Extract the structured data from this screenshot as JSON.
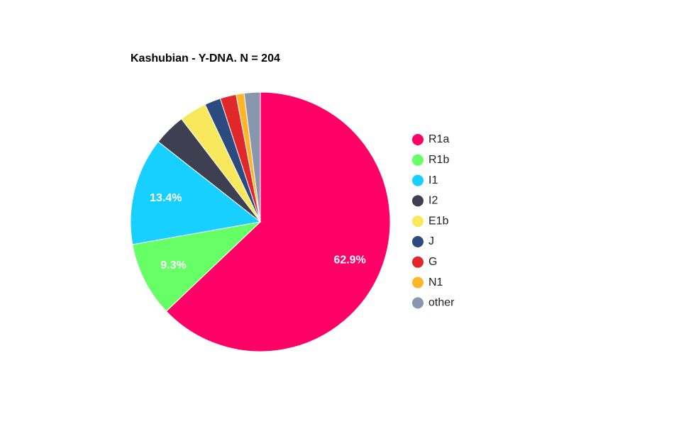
{
  "chart_data": {
    "type": "pie",
    "title": "Kashubian - Y-DNA. N = 204",
    "categories": [
      "R1a",
      "R1b",
      "I1",
      "I2",
      "E1b",
      "J",
      "G",
      "N1",
      "other"
    ],
    "values": [
      62.9,
      9.3,
      13.4,
      4.0,
      3.4,
      2.0,
      2.0,
      1.0,
      2.0
    ],
    "value_labels": [
      "62.9%",
      "9.3%",
      "13.4%",
      null,
      null,
      null,
      null,
      null,
      null
    ],
    "colors": [
      "#ff0066",
      "#66ff66",
      "#17d0ff",
      "#3f3f52",
      "#f7e85c",
      "#2b4a80",
      "#e0282b",
      "#ffb52a",
      "#8896ae"
    ],
    "legend": "right"
  }
}
